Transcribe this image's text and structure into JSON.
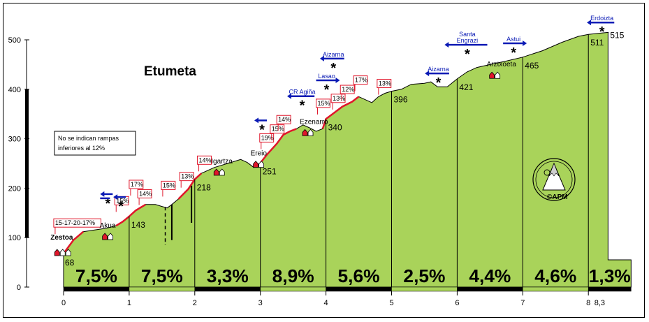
{
  "chart_data": {
    "type": "area",
    "title": "Etumeta",
    "note": [
      "No se indican rampas",
      "inferiores al 12%"
    ],
    "ylim": [
      0,
      500
    ],
    "y_ticks": [
      "0",
      "100",
      "200",
      "300",
      "400",
      "500"
    ],
    "x_ticks": [
      "0",
      "1",
      "2",
      "3",
      "4",
      "5",
      "6",
      "7",
      "8"
    ],
    "x_end_label": "8,3",
    "xlim": [
      0,
      8.3
    ],
    "profile": [
      {
        "x": 0.0,
        "y": 68
      },
      {
        "x": 0.15,
        "y": 95
      },
      {
        "x": 0.3,
        "y": 112
      },
      {
        "x": 0.5,
        "y": 116
      },
      {
        "x": 0.65,
        "y": 119
      },
      {
        "x": 0.8,
        "y": 124
      },
      {
        "x": 0.9,
        "y": 132
      },
      {
        "x": 1.0,
        "y": 143
      },
      {
        "x": 1.1,
        "y": 155
      },
      {
        "x": 1.25,
        "y": 167
      },
      {
        "x": 1.4,
        "y": 167
      },
      {
        "x": 1.5,
        "y": 163
      },
      {
        "x": 1.58,
        "y": 160
      },
      {
        "x": 1.65,
        "y": 167
      },
      {
        "x": 1.75,
        "y": 178
      },
      {
        "x": 1.9,
        "y": 198
      },
      {
        "x": 2.0,
        "y": 218
      },
      {
        "x": 2.1,
        "y": 230
      },
      {
        "x": 2.3,
        "y": 242
      },
      {
        "x": 2.55,
        "y": 252
      },
      {
        "x": 2.7,
        "y": 258
      },
      {
        "x": 2.8,
        "y": 252
      },
      {
        "x": 2.9,
        "y": 242
      },
      {
        "x": 3.0,
        "y": 251
      },
      {
        "x": 3.1,
        "y": 268
      },
      {
        "x": 3.25,
        "y": 290
      },
      {
        "x": 3.35,
        "y": 308
      },
      {
        "x": 3.45,
        "y": 315
      },
      {
        "x": 3.55,
        "y": 320
      },
      {
        "x": 3.65,
        "y": 328
      },
      {
        "x": 3.75,
        "y": 322
      },
      {
        "x": 3.85,
        "y": 315
      },
      {
        "x": 3.95,
        "y": 320
      },
      {
        "x": 4.0,
        "y": 340
      },
      {
        "x": 4.1,
        "y": 350
      },
      {
        "x": 4.25,
        "y": 365
      },
      {
        "x": 4.4,
        "y": 375
      },
      {
        "x": 4.5,
        "y": 385
      },
      {
        "x": 4.6,
        "y": 379
      },
      {
        "x": 4.7,
        "y": 373
      },
      {
        "x": 4.8,
        "y": 385
      },
      {
        "x": 4.9,
        "y": 392
      },
      {
        "x": 5.0,
        "y": 396
      },
      {
        "x": 5.15,
        "y": 400
      },
      {
        "x": 5.3,
        "y": 410
      },
      {
        "x": 5.5,
        "y": 412
      },
      {
        "x": 5.6,
        "y": 415
      },
      {
        "x": 5.7,
        "y": 405
      },
      {
        "x": 5.85,
        "y": 405
      },
      {
        "x": 6.0,
        "y": 421
      },
      {
        "x": 6.15,
        "y": 435
      },
      {
        "x": 6.3,
        "y": 444
      },
      {
        "x": 6.5,
        "y": 450
      },
      {
        "x": 6.75,
        "y": 457
      },
      {
        "x": 7.0,
        "y": 465
      },
      {
        "x": 7.3,
        "y": 478
      },
      {
        "x": 7.6,
        "y": 495
      },
      {
        "x": 7.85,
        "y": 507
      },
      {
        "x": 8.0,
        "y": 511
      },
      {
        "x": 8.15,
        "y": 513
      },
      {
        "x": 8.3,
        "y": 515
      }
    ],
    "segment_gradients": [
      "7,5%",
      "7,5%",
      "3,3%",
      "8,9%",
      "5,6%",
      "2,5%",
      "4,4%",
      "4,6%",
      "1,3%"
    ],
    "km_altitudes": [
      {
        "x": 0,
        "label": "68"
      },
      {
        "x": 1,
        "label": "143"
      },
      {
        "x": 2,
        "label": "218"
      },
      {
        "x": 3,
        "label": "251"
      },
      {
        "x": 4,
        "label": "340"
      },
      {
        "x": 5,
        "label": "396"
      },
      {
        "x": 6,
        "label": "421"
      },
      {
        "x": 7,
        "label": "465"
      },
      {
        "x": 8,
        "label": "511"
      },
      {
        "x": 8.3,
        "label": "515"
      }
    ],
    "places": [
      {
        "name": "Zestoa",
        "x": -0.2,
        "y": 96
      },
      {
        "name": "Akua",
        "x": 0.55,
        "y": 120
      },
      {
        "name": "Igartza",
        "x": 2.25,
        "y": 250
      },
      {
        "name": "Ereio",
        "x": 2.85,
        "y": 266
      },
      {
        "name": "Ezenarro",
        "x": 3.6,
        "y": 330
      },
      {
        "name": "Arztxoeta",
        "x": 6.45,
        "y": 446
      }
    ],
    "ramps": [
      {
        "label": "15-17-20-17%",
        "x": -0.15,
        "y": 124
      },
      {
        "label": "15%",
        "x": 0.78,
        "y": 169
      },
      {
        "label": "14%",
        "x": 1.13,
        "y": 183
      },
      {
        "label": "17%",
        "x": 1.0,
        "y": 202
      },
      {
        "label": "15%",
        "x": 1.49,
        "y": 200
      },
      {
        "label": "13%",
        "x": 1.77,
        "y": 218
      },
      {
        "label": "14%",
        "x": 2.04,
        "y": 251
      },
      {
        "label": "19%",
        "x": 2.99,
        "y": 296
      },
      {
        "label": "15%",
        "x": 3.15,
        "y": 314
      },
      {
        "label": "14%",
        "x": 3.25,
        "y": 333
      },
      {
        "label": "15%",
        "x": 3.85,
        "y": 366
      },
      {
        "label": "13%",
        "x": 4.08,
        "y": 376
      },
      {
        "label": "12%",
        "x": 4.22,
        "y": 394
      },
      {
        "label": "17%",
        "x": 4.42,
        "y": 413
      },
      {
        "label": "13%",
        "x": 4.78,
        "y": 406
      }
    ],
    "junctions": [
      {
        "label": "",
        "x": 0.6,
        "y": 188,
        "dir": "left"
      },
      {
        "label": "",
        "x": 0.8,
        "y": 182,
        "dir": "left"
      },
      {
        "label": "",
        "x": 2.95,
        "y": 337,
        "dir": "left"
      },
      {
        "label": "CR Agiña",
        "x": 3.45,
        "y": 386,
        "dir": "left"
      },
      {
        "label": "Lasao",
        "x": 3.85,
        "y": 418,
        "dir": "right"
      },
      {
        "label": "Aizarna",
        "x": 3.95,
        "y": 462,
        "dir": "left"
      },
      {
        "label": "Aizarna",
        "x": 5.55,
        "y": 432,
        "dir": "left"
      },
      {
        "label": "Santa Engrazi",
        "x": 5.85,
        "y": 490,
        "dir": "left"
      },
      {
        "label": "Astui",
        "x": 6.7,
        "y": 493,
        "dir": "right"
      },
      {
        "label": "Erdoizta",
        "x": 8.02,
        "y": 535,
        "dir": "left"
      }
    ],
    "logo_text": "APM",
    "colors": {
      "fill": "#a9d35a",
      "ramp": "#e0162b",
      "road": "#0a1ab5"
    }
  }
}
